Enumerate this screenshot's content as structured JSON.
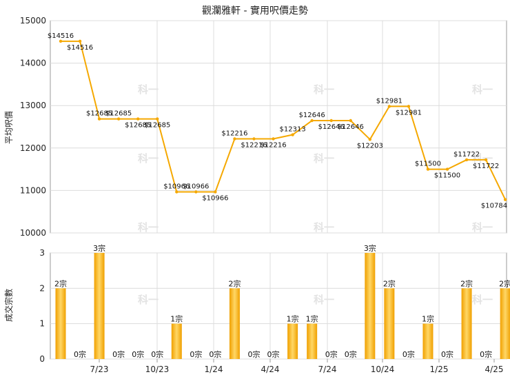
{
  "chart_data": [
    {
      "type": "line",
      "title": "觀瀾雅軒 - 實用呎價走勢",
      "ylabel": "平均呎價",
      "ylim": [
        10000,
        15000
      ],
      "yticks": [
        10000,
        11000,
        12000,
        13000,
        14000,
        15000
      ],
      "xticks": [
        "7/23",
        "10/23",
        "1/24",
        "4/24",
        "7/24",
        "10/24",
        "1/25",
        "4/25"
      ],
      "grid": true,
      "series": [
        {
          "values": [
            14516,
            14516,
            12685,
            12685,
            12685,
            12685,
            10966,
            10966,
            10966,
            12216,
            12216,
            12216,
            12313,
            12646,
            12646,
            12646,
            12203,
            12981,
            12981,
            11500,
            11500,
            11722,
            11722,
            10784
          ],
          "labels": [
            "$14516",
            "$14516",
            "$12685",
            "$12685",
            "$12685",
            "$12685",
            "$10966",
            "$10966",
            "$10966",
            "$12216",
            "$12216",
            "$12216",
            "$12313",
            "$12646",
            "$12646",
            "$12646",
            "$12203",
            "$12981",
            "$12981",
            "$11500",
            "$11500",
            "$11722",
            "$11722",
            "$10784"
          ]
        }
      ],
      "color": "#f5a800"
    },
    {
      "type": "bar",
      "ylabel": "成交宗數",
      "ylim": [
        0,
        3
      ],
      "yticks": [
        0,
        1,
        2,
        3
      ],
      "xticks": [
        "7/23",
        "10/23",
        "1/24",
        "4/24",
        "7/24",
        "10/24",
        "1/25",
        "4/25"
      ],
      "grid": true,
      "values": [
        2,
        0,
        3,
        0,
        0,
        0,
        1,
        0,
        0,
        2,
        0,
        0,
        1,
        1,
        0,
        0,
        3,
        2,
        0,
        1,
        0,
        2,
        0,
        2
      ],
      "labels": [
        "2宗",
        "0宗",
        "3宗",
        "0宗",
        "0宗",
        "0宗",
        "1宗",
        "0宗",
        "0宗",
        "2宗",
        "0宗",
        "0宗",
        "1宗",
        "1宗",
        "0宗",
        "0宗",
        "3宗",
        "2宗",
        "0宗",
        "1宗",
        "0宗",
        "2宗",
        "0宗",
        "2宗"
      ],
      "color": "#f5a800"
    }
  ],
  "watermark": "科一"
}
